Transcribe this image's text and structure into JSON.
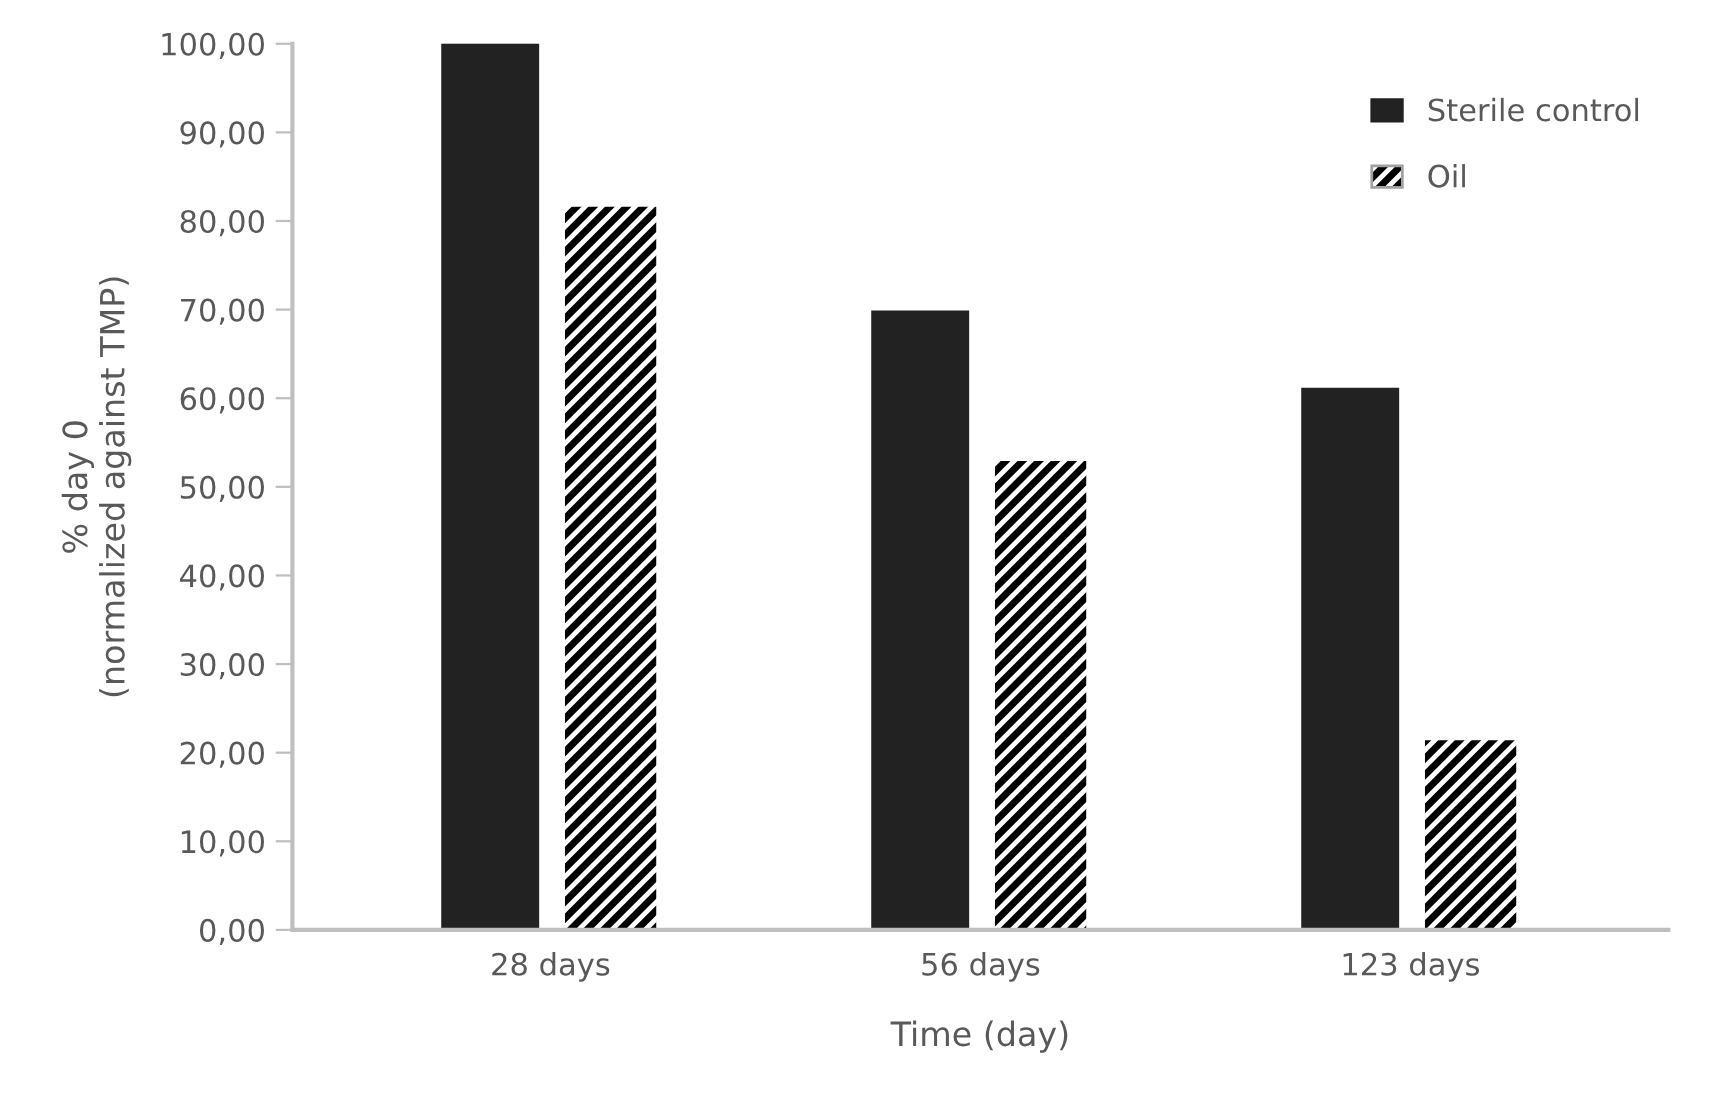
{
  "chart_data": {
    "type": "bar",
    "xlabel": "Time (day)",
    "ylabel": "% day 0\n(normalized against TMP)",
    "categories": [
      "28 days",
      "56 days",
      "123 days"
    ],
    "series": [
      {
        "name": "Sterile control",
        "color": "#222222",
        "values": [
          100,
          69.7,
          61.0
        ]
      },
      {
        "name": "Oil",
        "color": "#ffffff",
        "values": [
          81.8,
          53.1,
          21.6
        ]
      }
    ],
    "ylim": [
      0,
      100
    ],
    "yticks": [
      {
        "value": 0,
        "label": "0,00"
      },
      {
        "value": 10,
        "label": "10,00"
      },
      {
        "value": 20,
        "label": "20,00"
      },
      {
        "value": 30,
        "label": "30,00"
      },
      {
        "value": 40,
        "label": "40,00"
      },
      {
        "value": 50,
        "label": "50,00"
      },
      {
        "value": 60,
        "label": "60,00"
      },
      {
        "value": 70,
        "label": "70,00"
      },
      {
        "value": 80,
        "label": "80,00"
      },
      {
        "value": 90,
        "label": "90,00"
      },
      {
        "value": 100,
        "label": "100,00"
      }
    ],
    "grid": false,
    "legend": "top right"
  }
}
